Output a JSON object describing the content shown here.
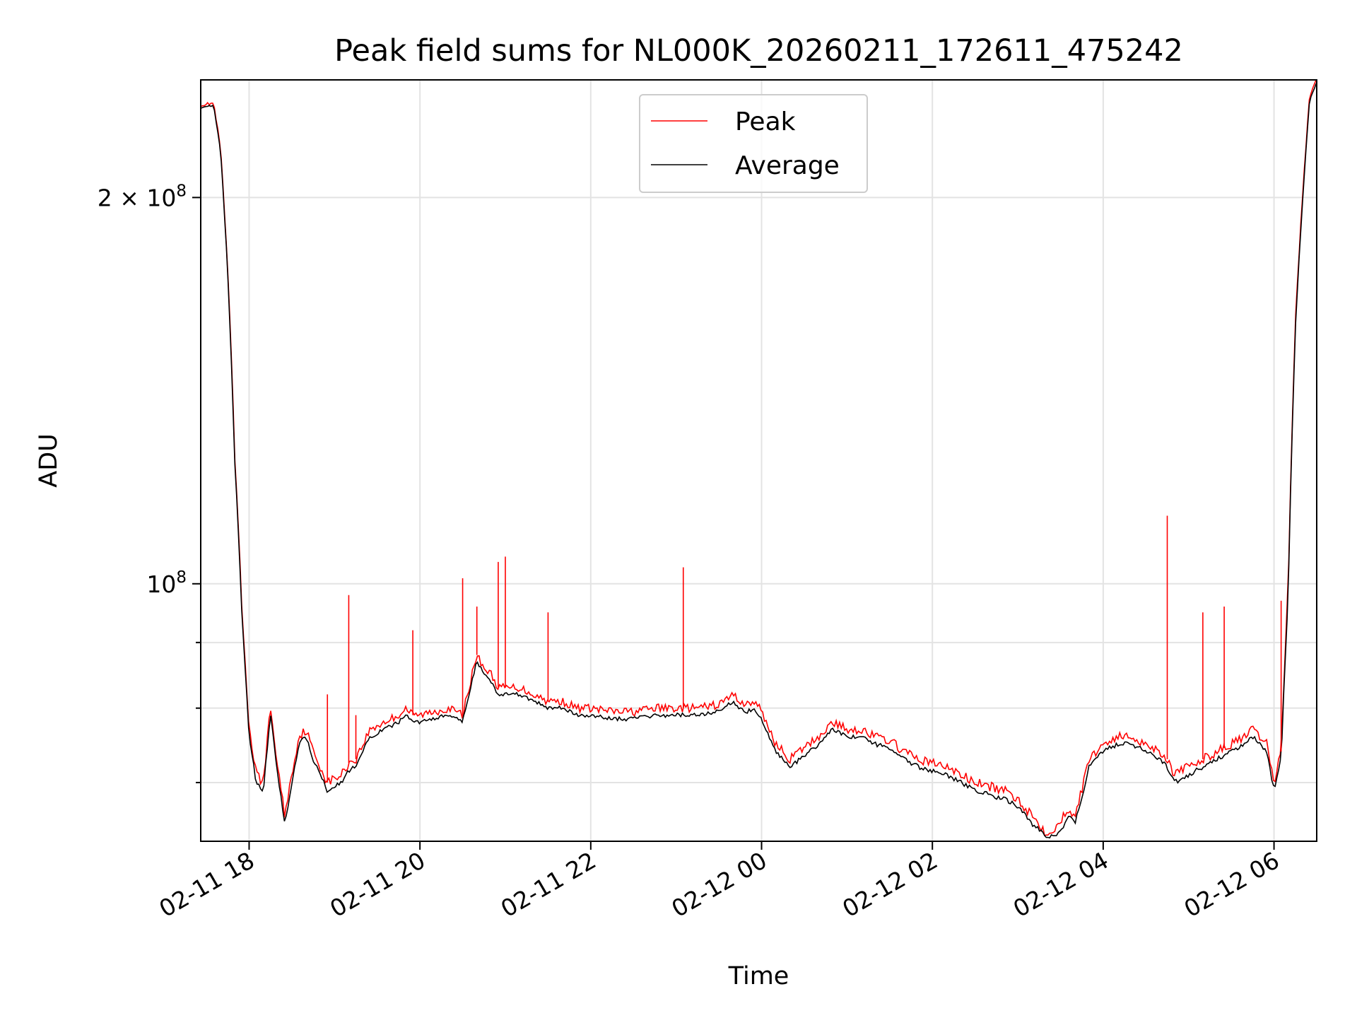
{
  "chart_data": {
    "type": "line",
    "title": "Peak field sums for NL000K_20260211_172611_475242",
    "xlabel": "Time",
    "ylabel": "ADU",
    "y_scale": "log",
    "grid": true,
    "legend_placement": "upper-center",
    "xlim": [
      "2026-02-11 17:26",
      "2026-02-12 06:30"
    ],
    "ylim": [
      63000000,
      247000000
    ],
    "x_ticks": [
      "02-11 18",
      "02-11 20",
      "02-11 22",
      "02-12 00",
      "02-12 02",
      "02-12 04",
      "02-12 06"
    ],
    "y_ticks_major": [
      {
        "value": 100000000,
        "base": "10",
        "exp": "8",
        "mantissa": ""
      },
      {
        "value": 200000000,
        "base": "10",
        "exp": "8",
        "mantissa": "2"
      }
    ],
    "y_ticks_minor": [
      70000000,
      80000000,
      90000000
    ],
    "x": [
      "17:26",
      "17:35",
      "17:40",
      "17:45",
      "17:50",
      "17:55",
      "18:00",
      "18:05",
      "18:10",
      "18:15",
      "18:20",
      "18:25",
      "18:30",
      "18:35",
      "18:40",
      "18:45",
      "18:50",
      "18:55",
      "19:00",
      "19:05",
      "19:10",
      "19:15",
      "19:20",
      "19:25",
      "19:30",
      "19:35",
      "19:40",
      "19:45",
      "19:50",
      "19:55",
      "20:00",
      "20:10",
      "20:20",
      "20:30",
      "20:40",
      "20:45",
      "20:50",
      "20:55",
      "21:00",
      "21:05",
      "21:10",
      "21:20",
      "21:30",
      "21:40",
      "21:50",
      "22:00",
      "22:15",
      "22:30",
      "22:45",
      "23:00",
      "23:15",
      "23:30",
      "23:40",
      "23:45",
      "23:50",
      "23:55",
      "00:00",
      "00:10",
      "00:20",
      "00:30",
      "00:40",
      "00:50",
      "01:00",
      "01:10",
      "01:20",
      "01:30",
      "01:40",
      "01:50",
      "02:00",
      "02:10",
      "02:20",
      "02:30",
      "02:40",
      "02:50",
      "03:00",
      "03:10",
      "03:20",
      "03:30",
      "03:35",
      "03:40",
      "03:45",
      "03:50",
      "04:00",
      "04:10",
      "04:20",
      "04:30",
      "04:40",
      "04:45",
      "04:50",
      "05:00",
      "05:10",
      "05:20",
      "05:30",
      "05:40",
      "05:45",
      "05:50",
      "05:55",
      "06:00",
      "06:05",
      "06:10",
      "06:15",
      "06:20",
      "06:25",
      "06:30"
    ],
    "series": [
      {
        "name": "Peak",
        "color": "#ff0000",
        "values": [
          236,
          237,
          218,
          175,
          125,
          95,
          77,
          71,
          70,
          80,
          72,
          66,
          71,
          76,
          77,
          74,
          72,
          70,
          70.5,
          71,
          72.5,
          73,
          75,
          77,
          77.5,
          78,
          78.5,
          79,
          80,
          79,
          79,
          79.5,
          80,
          79,
          88,
          86,
          85,
          83,
          83,
          83,
          83,
          82,
          81,
          81,
          80,
          80,
          79.5,
          79.5,
          80,
          80,
          80,
          80.5,
          82,
          81,
          80.5,
          81,
          79.5,
          75,
          73,
          74.5,
          76,
          78,
          77,
          77,
          76,
          75.5,
          74,
          73,
          72.5,
          72,
          71,
          70,
          69.5,
          69,
          68,
          66,
          64,
          65,
          67,
          66,
          69,
          73,
          75,
          76,
          76,
          75,
          74,
          73,
          71,
          72,
          73,
          74,
          75,
          76,
          77,
          76,
          75,
          70,
          74,
          100,
          160,
          200,
          240,
          247
        ]
      },
      {
        "name": "Average",
        "color": "#000000",
        "values": [
          235,
          236,
          217,
          174,
          124,
          94,
          76,
          70,
          69,
          79,
          71,
          65,
          70,
          75,
          76,
          73,
          71,
          69,
          69.5,
          70,
          71.5,
          72,
          74,
          76,
          76.5,
          77,
          77.5,
          78,
          79,
          78,
          78,
          78.5,
          79,
          78,
          87,
          85,
          84,
          82,
          82,
          82,
          82,
          81,
          80,
          80,
          79,
          79,
          78.5,
          78.5,
          79,
          79,
          79,
          79.5,
          81,
          80,
          79.5,
          80,
          78.5,
          74,
          72,
          73.5,
          75,
          77,
          76,
          76,
          75,
          74.5,
          73,
          72,
          71.5,
          71,
          70,
          69,
          68.5,
          68,
          67,
          65,
          63.5,
          64,
          66,
          65,
          68,
          72,
          74,
          75,
          75,
          74,
          73,
          72,
          70,
          71,
          72,
          73,
          74,
          75,
          76,
          75,
          74,
          69,
          73,
          98,
          158,
          198,
          238,
          246
        ]
      }
    ],
    "values_unit_scale": 1000000,
    "spikes": [
      {
        "x": "19:10",
        "value": 98000000
      },
      {
        "x": "18:55",
        "value": 82000000
      },
      {
        "x": "19:15",
        "value": 79000000
      },
      {
        "x": "19:55",
        "value": 92000000
      },
      {
        "x": "20:30",
        "value": 101000000
      },
      {
        "x": "20:40",
        "value": 96000000
      },
      {
        "x": "20:55",
        "value": 104000000
      },
      {
        "x": "21:00",
        "value": 105000000
      },
      {
        "x": "21:30",
        "value": 95000000
      },
      {
        "x": "23:05",
        "value": 103000000
      },
      {
        "x": "04:45",
        "value": 113000000
      },
      {
        "x": "05:10",
        "value": 95000000
      },
      {
        "x": "05:25",
        "value": 96000000
      },
      {
        "x": "06:05",
        "value": 97000000
      }
    ],
    "legend": [
      "Peak",
      "Average"
    ]
  }
}
